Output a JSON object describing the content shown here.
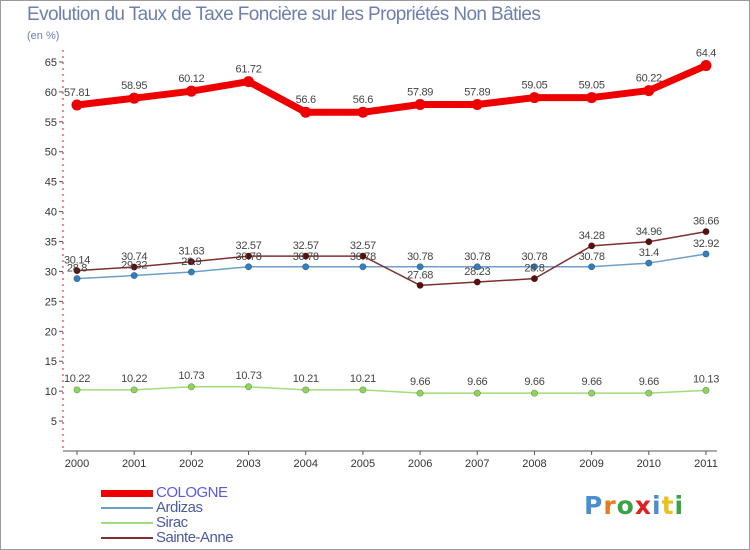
{
  "title": "Evolution du Taux de Taxe Foncière sur les Propriétés Non Bâties",
  "unit_label": "(en %)",
  "brand": "Proxiti",
  "brand_colors": [
    "#4a8fd0",
    "#e67b22",
    "#3aa34a",
    "#e02020",
    "#4a8fd0",
    "#e8c221",
    "#3aa34a"
  ],
  "chart_data": {
    "type": "line",
    "title": "Evolution du Taux de Taxe Foncière sur les Propriétés Non Bâties",
    "ylabel": "(en %)",
    "xlabel": "",
    "ylim": [
      0,
      67
    ],
    "yticks": [
      5,
      10,
      15,
      20,
      25,
      30,
      35,
      40,
      45,
      50,
      55,
      60,
      65
    ],
    "grid": false,
    "legend_position": "bottom-left",
    "categories": [
      "2000",
      "2001",
      "2002",
      "2003",
      "2004",
      "2005",
      "2006",
      "2007",
      "2008",
      "2009",
      "2010",
      "2011"
    ],
    "series": [
      {
        "name": "COLOGNE",
        "color": "#ee0000",
        "values": [
          57.81,
          58.95,
          60.12,
          61.72,
          56.6,
          56.6,
          57.89,
          57.89,
          59.05,
          59.05,
          60.22,
          64.4
        ],
        "labels": [
          "57.81",
          "58.95",
          "60.12",
          "61.72",
          "56.6",
          "56.6",
          "57.89",
          "57.89",
          "59.05",
          "59.05",
          "60.22",
          "64.4"
        ]
      },
      {
        "name": "Ardizas",
        "color": "#6f9ec8",
        "marker": "#2f7fc3",
        "values": [
          28.8,
          29.32,
          29.9,
          30.78,
          30.78,
          30.78,
          30.78,
          30.78,
          30.78,
          30.78,
          31.4,
          32.92
        ],
        "labels": [
          "28.8",
          "29.32",
          "29.9",
          "30.78",
          "30.78",
          "30.78",
          "30.78",
          "30.78",
          "30.78",
          "30.78",
          "31.4",
          "32.92"
        ]
      },
      {
        "name": "Sirac",
        "color": "#a3dc7c",
        "marker": "#8bd65a",
        "values": [
          10.22,
          10.22,
          10.73,
          10.73,
          10.21,
          10.21,
          9.66,
          9.66,
          9.66,
          9.66,
          9.66,
          10.13
        ],
        "labels": [
          "10.22",
          "10.22",
          "10.73",
          "10.73",
          "10.21",
          "10.21",
          "9.66",
          "9.66",
          "9.66",
          "9.66",
          "9.66",
          "10.13"
        ]
      },
      {
        "name": "Sainte-Anne",
        "color": "#7e3030",
        "marker": "#5a0f0f",
        "values": [
          30.14,
          30.74,
          31.63,
          32.57,
          32.57,
          32.57,
          27.68,
          28.23,
          28.8,
          34.28,
          34.96,
          36.66
        ],
        "labels": [
          "30.14",
          "30.74",
          "31.63",
          "32.57",
          "32.57",
          "32.57",
          "27.68",
          "28.23",
          "28.8",
          "34.28",
          "34.96",
          "36.66"
        ]
      }
    ]
  }
}
